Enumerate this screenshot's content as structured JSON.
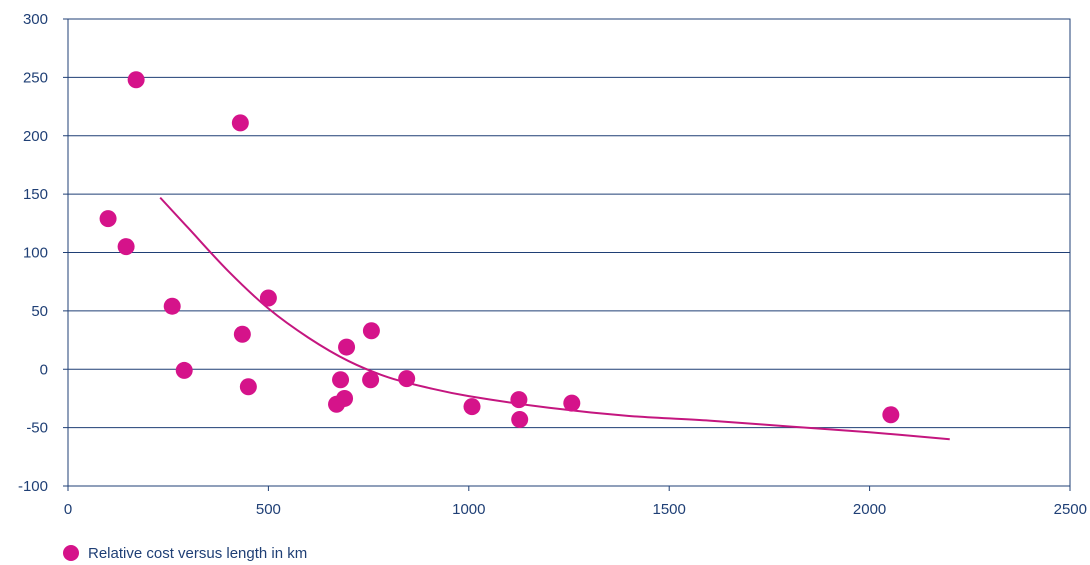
{
  "chart_data": {
    "type": "scatter",
    "title": "",
    "xlabel": "",
    "ylabel": "",
    "xlim": [
      0,
      2500
    ],
    "ylim": [
      -100,
      300
    ],
    "x_ticks": [
      "0",
      "500",
      "1000",
      "1500",
      "2000",
      "2500"
    ],
    "y_ticks": [
      "300",
      "250",
      "200",
      "150",
      "100",
      "50",
      "0",
      "-50",
      "-100"
    ],
    "grid": "horizontal",
    "legend_position": "bottom-left",
    "colors": {
      "points": "#d5138a",
      "trend": "#c4167f",
      "axis": "#1f3f75"
    },
    "series": [
      {
        "name": "Relative cost versus length in km",
        "points": [
          [
            100,
            129
          ],
          [
            145,
            105
          ],
          [
            170,
            248
          ],
          [
            260,
            54
          ],
          [
            290,
            -1
          ],
          [
            430,
            211
          ],
          [
            435,
            30
          ],
          [
            450,
            -15
          ],
          [
            500,
            61
          ],
          [
            670,
            -30
          ],
          [
            680,
            -9
          ],
          [
            690,
            -25
          ],
          [
            695,
            19
          ],
          [
            755,
            -9
          ],
          [
            757,
            33
          ],
          [
            845,
            -8
          ],
          [
            1008,
            -32
          ],
          [
            1125,
            -26
          ],
          [
            1127,
            -43
          ],
          [
            1257,
            -29
          ],
          [
            2053,
            -39
          ]
        ]
      }
    ],
    "trendline": {
      "points": [
        [
          230,
          147
        ],
        [
          300,
          121
        ],
        [
          400,
          84
        ],
        [
          500,
          52
        ],
        [
          600,
          27
        ],
        [
          700,
          7
        ],
        [
          800,
          -7
        ],
        [
          900,
          -16
        ],
        [
          1000,
          -23
        ],
        [
          1200,
          -33
        ],
        [
          1400,
          -40
        ],
        [
          1600,
          -44
        ],
        [
          1800,
          -49
        ],
        [
          2000,
          -54
        ],
        [
          2200,
          -60
        ]
      ]
    }
  }
}
